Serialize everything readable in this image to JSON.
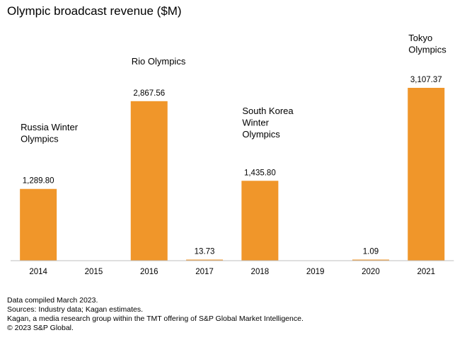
{
  "chart_data": {
    "type": "bar",
    "title": "Olympic broadcast revenue ($M)",
    "xlabel": "",
    "ylabel": "",
    "categories": [
      "2014",
      "2015",
      "2016",
      "2017",
      "2018",
      "2019",
      "2020",
      "2021"
    ],
    "values": [
      1289.8,
      0,
      2867.56,
      13.73,
      1435.8,
      0,
      1.09,
      3107.37
    ],
    "data_labels": [
      "1,289.80",
      "",
      "2,867.56",
      "13.73",
      "1,435.80",
      "",
      "1.09",
      "3,107.37"
    ],
    "annotations": [
      {
        "category": "2014",
        "lines": [
          "Russia Winter",
          "Olympics"
        ]
      },
      {
        "category": "2016",
        "lines": [
          "Rio Olympics"
        ]
      },
      {
        "category": "2018",
        "lines": [
          "South Korea",
          "Winter",
          "Olympics"
        ]
      },
      {
        "category": "2021",
        "lines": [
          "Tokyo",
          "Olympics"
        ]
      }
    ],
    "ylim": [
      0,
      3107.37
    ],
    "grid": false,
    "bar_color": "#f0962a",
    "axis_color": "#bfbfbf"
  },
  "footer": {
    "line1": "Data compiled March 2023.",
    "line2": "Sources: Industry data; Kagan estimates.",
    "line3": "Kagan, a media research group within the TMT offering of S&P Global Market Intelligence.",
    "line4": "© 2023 S&P Global."
  }
}
